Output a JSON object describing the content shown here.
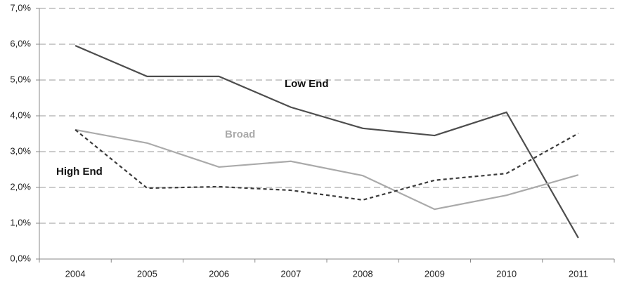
{
  "chart_data": {
    "type": "line",
    "categories": [
      "2004",
      "2005",
      "2006",
      "2007",
      "2008",
      "2009",
      "2010",
      "2011"
    ],
    "series": [
      {
        "name": "Low End",
        "color": "#4d4d4d",
        "dash": false,
        "values": [
          5.96,
          5.1,
          5.1,
          4.24,
          3.65,
          3.45,
          4.1,
          0.59
        ]
      },
      {
        "name": "Broad",
        "color": "#aaaaaa",
        "dash": false,
        "values": [
          3.61,
          3.24,
          2.57,
          2.73,
          2.33,
          1.39,
          1.78,
          2.35
        ]
      },
      {
        "name": "High End",
        "color": "#3a3a3a",
        "dash": true,
        "values": [
          3.61,
          1.98,
          2.02,
          1.92,
          1.65,
          2.2,
          2.39,
          3.51
        ]
      }
    ],
    "ylim": [
      0,
      7
    ],
    "yticks": [
      {
        "value": 0,
        "label": "0,0%"
      },
      {
        "value": 1,
        "label": "1,0%"
      },
      {
        "value": 2,
        "label": "2,0%"
      },
      {
        "value": 3,
        "label": "3,0%"
      },
      {
        "value": 4,
        "label": "4,0%"
      },
      {
        "value": 5,
        "label": "5,0%"
      },
      {
        "value": 6,
        "label": "6,0%"
      },
      {
        "value": 7,
        "label": "7,0%"
      }
    ],
    "grid": true
  }
}
